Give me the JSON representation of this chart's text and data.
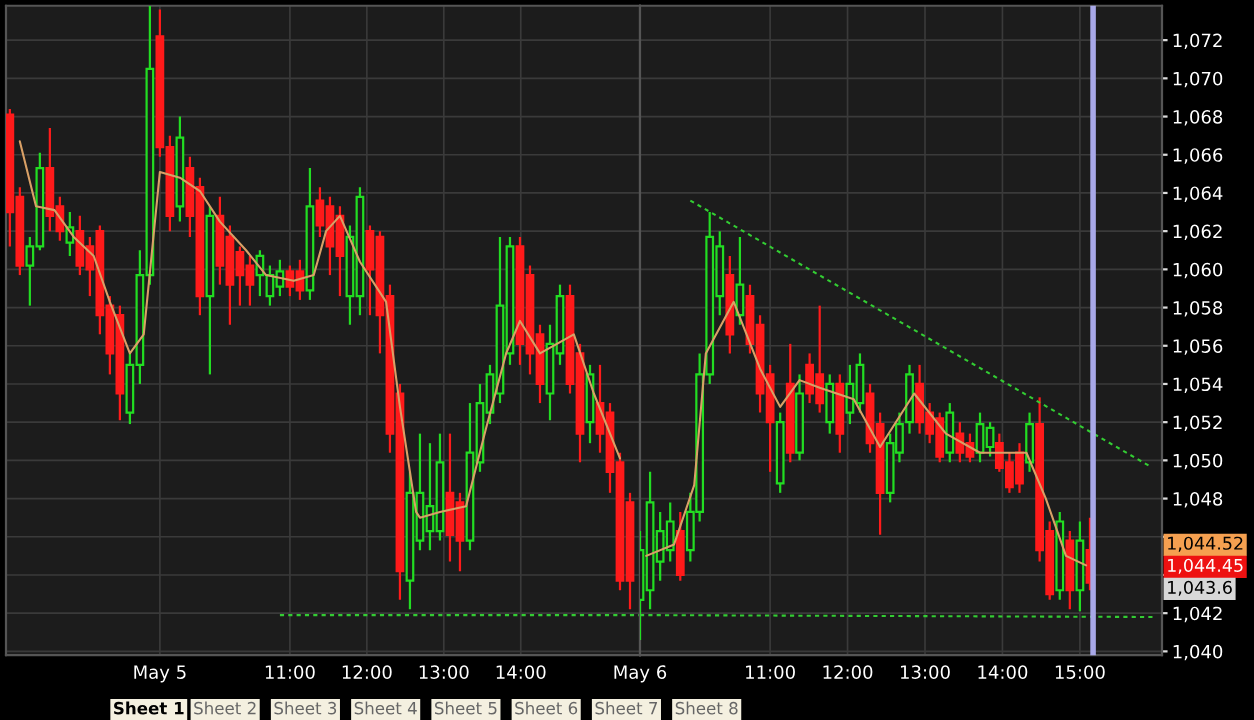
{
  "chart_data": [
    {
      "type": "candlestick",
      "tick_labels": "x",
      "grid": true,
      "x": [
        7.36,
        7.49,
        7.62,
        7.75,
        7.88,
        8.01,
        8.14,
        8.27,
        8.4,
        8.53,
        8.66,
        8.79,
        8.92,
        9.05,
        9.18,
        9.31,
        9.44,
        9.57,
        9.7,
        9.83,
        9.96,
        10.09,
        10.22,
        10.35,
        10.48,
        10.61,
        10.74,
        10.87,
        11.0,
        11.13,
        11.26,
        11.39,
        11.52,
        11.65,
        11.78,
        11.91,
        12.04,
        12.17,
        12.3,
        12.43,
        12.56,
        12.69,
        12.82,
        12.95,
        13.08,
        13.21,
        13.34,
        13.47,
        13.6,
        13.73,
        13.86,
        13.99,
        14.12,
        14.25,
        14.38,
        14.51,
        14.64,
        14.77,
        14.9,
        15.03,
        15.16,
        15.29,
        15.42
      ],
      "ohlc": [
        [
          1068.1,
          1068.4,
          1061.2,
          1063.0
        ],
        [
          1063.8,
          1064.3,
          1059.7,
          1060.2
        ],
        [
          1060.2,
          1061.7,
          1058.1,
          1061.2
        ],
        [
          1061.2,
          1066.1,
          1061.0,
          1065.3
        ],
        [
          1065.3,
          1067.4,
          1062.0,
          1062.8
        ],
        [
          1063.3,
          1063.8,
          1061.5,
          1062.0
        ],
        [
          1061.4,
          1063.0,
          1060.7,
          1062.2
        ],
        [
          1062.0,
          1062.8,
          1059.7,
          1060.2
        ],
        [
          1061.2,
          1061.7,
          1058.6,
          1060.0
        ],
        [
          1062.0,
          1062.3,
          1056.6,
          1057.6
        ],
        [
          1058.1,
          1058.6,
          1054.5,
          1055.6
        ],
        [
          1057.6,
          1058.1,
          1052.1,
          1053.5
        ],
        [
          1052.5,
          1055.6,
          1051.9,
          1055.0
        ],
        [
          1055.0,
          1061.0,
          1054.0,
          1059.7
        ],
        [
          1059.7,
          1073.8,
          1059.2,
          1070.5
        ],
        [
          1072.2,
          1073.6,
          1065.9,
          1066.4
        ],
        [
          1066.4,
          1067.0,
          1062.0,
          1062.8
        ],
        [
          1063.3,
          1068.0,
          1062.5,
          1066.9
        ],
        [
          1065.3,
          1065.9,
          1061.7,
          1062.8
        ],
        [
          1064.3,
          1064.8,
          1057.6,
          1058.6
        ],
        [
          1058.6,
          1063.3,
          1054.5,
          1062.8
        ],
        [
          1062.8,
          1063.8,
          1059.2,
          1060.2
        ],
        [
          1061.7,
          1062.3,
          1057.1,
          1059.2
        ],
        [
          1060.9,
          1061.2,
          1058.1,
          1059.7
        ],
        [
          1060.2,
          1060.7,
          1058.1,
          1059.2
        ],
        [
          1059.7,
          1061.0,
          1058.6,
          1060.7
        ],
        [
          1058.6,
          1060.2,
          1058.1,
          1059.7
        ],
        [
          1059.1,
          1060.5,
          1058.6,
          1059.9
        ],
        [
          1059.9,
          1060.2,
          1058.6,
          1059.1
        ],
        [
          1059.9,
          1060.5,
          1058.4,
          1058.9
        ],
        [
          1058.9,
          1065.3,
          1058.4,
          1063.3
        ],
        [
          1063.6,
          1064.3,
          1061.7,
          1062.3
        ],
        [
          1063.3,
          1063.8,
          1059.7,
          1061.2
        ],
        [
          1062.8,
          1063.3,
          1058.6,
          1060.7
        ],
        [
          1058.6,
          1062.3,
          1057.1,
          1061.7
        ],
        [
          1058.6,
          1064.3,
          1057.6,
          1063.8
        ],
        [
          1062.0,
          1062.3,
          1057.6,
          1060.0
        ],
        [
          1061.7,
          1062.0,
          1055.6,
          1057.6
        ],
        [
          1058.6,
          1059.2,
          1050.4,
          1051.4
        ],
        [
          1053.5,
          1054.0,
          1042.7,
          1044.2
        ],
        [
          1043.7,
          1049.4,
          1042.2,
          1048.3
        ],
        [
          1045.8,
          1051.4,
          1045.3,
          1048.3
        ],
        [
          1046.3,
          1050.9,
          1045.3,
          1047.6
        ],
        [
          1046.3,
          1051.4,
          1045.8,
          1049.9
        ],
        [
          1048.3,
          1051.4,
          1044.7,
          1046.1
        ],
        [
          1047.8,
          1048.3,
          1044.2,
          1045.8
        ],
        [
          1045.8,
          1053.0,
          1045.3,
          1050.4
        ],
        [
          1049.9,
          1054.0,
          1049.4,
          1053.0
        ],
        [
          1052.5,
          1055.0,
          1051.9,
          1054.5
        ],
        [
          1053.5,
          1061.7,
          1053.0,
          1058.1
        ],
        [
          1055.6,
          1061.7,
          1055.0,
          1061.2
        ],
        [
          1061.2,
          1061.7,
          1055.0,
          1056.1
        ],
        [
          1059.7,
          1060.2,
          1054.5,
          1055.6
        ],
        [
          1056.6,
          1057.1,
          1053.0,
          1054.0
        ],
        [
          1053.5,
          1057.1,
          1052.1,
          1056.1
        ],
        [
          1055.6,
          1059.2,
          1055.0,
          1058.6
        ],
        [
          1058.6,
          1059.2,
          1053.5,
          1054.0
        ],
        [
          1055.6,
          1056.1,
          1049.9,
          1051.4
        ],
        [
          1052.0,
          1055.0,
          1050.9,
          1054.5
        ],
        [
          1053.0,
          1055.0,
          1050.4,
          1051.4
        ],
        [
          1052.5,
          1053.0,
          1048.3,
          1049.4
        ],
        [
          1049.9,
          1050.4,
          1043.2,
          1043.7
        ],
        [
          1047.8,
          1048.3,
          1042.2,
          1043.7
        ]
      ],
      "colors": [
        "#ff1a1a",
        "#ff1a1a",
        "#22dd22",
        "#22dd22",
        "#ff1a1a",
        "#ff1a1a",
        "#22dd22",
        "#ff1a1a",
        "#ff1a1a",
        "#ff1a1a",
        "#ff1a1a",
        "#ff1a1a",
        "#22dd22",
        "#22dd22",
        "#22dd22",
        "#ff1a1a",
        "#ff1a1a",
        "#22dd22",
        "#ff1a1a",
        "#ff1a1a",
        "#22dd22",
        "#ff1a1a",
        "#ff1a1a",
        "#ff1a1a",
        "#ff1a1a",
        "#22dd22",
        "#22dd22",
        "#22dd22",
        "#ff1a1a",
        "#ff1a1a",
        "#22dd22",
        "#ff1a1a",
        "#ff1a1a",
        "#ff1a1a",
        "#22dd22",
        "#22dd22",
        "#ff1a1a",
        "#ff1a1a",
        "#ff1a1a",
        "#ff1a1a",
        "#22dd22",
        "#22dd22",
        "#22dd22",
        "#22dd22",
        "#ff1a1a",
        "#ff1a1a",
        "#22dd22",
        "#22dd22",
        "#22dd22",
        "#22dd22",
        "#22dd22",
        "#ff1a1a",
        "#ff1a1a",
        "#ff1a1a",
        "#22dd22",
        "#22dd22",
        "#ff1a1a",
        "#ff1a1a",
        "#22dd22",
        "#ff1a1a",
        "#ff1a1a",
        "#ff1a1a",
        "#ff1a1a"
      ],
      "series": [
        {
          "type": "line",
          "color": "#d9a066",
          "line_style": "solid",
          "x": [
            7.49,
            7.7,
            7.94,
            8.19,
            8.45,
            8.66,
            8.92,
            9.1,
            9.31,
            9.57,
            9.83,
            10.09,
            10.43,
            10.69,
            11.05,
            11.31,
            11.47,
            11.65,
            11.91,
            12.25,
            12.43,
            12.64,
            12.69,
            12.95,
            13.29,
            13.55,
            13.81,
            13.99,
            14.25,
            14.69,
            14.95,
            15.29
          ],
          "values": [
            1066.7,
            1063.3,
            1063.1,
            1061.7,
            1060.7,
            1058.3,
            1055.6,
            1056.6,
            1065.1,
            1064.8,
            1064.1,
            1062.5,
            1061.0,
            1059.7,
            1059.4,
            1059.7,
            1062.0,
            1062.8,
            1060.4,
            1058.3,
            1052.8,
            1047.3,
            1047.0,
            1047.3,
            1047.6,
            1051.7,
            1055.6,
            1057.3,
            1055.6,
            1056.6,
            1053.5,
            1050.1
          ]
        },
        {
          "type": "line",
          "color": "#33cc33",
          "line_style": "dashed",
          "x": [
            10.87,
            15.55
          ],
          "values": [
            1041.9,
            1041.9
          ]
        }
      ],
      "xlim": [
        7.31,
        15.55
      ],
      "xticks": [
        {
          "value": 9.31,
          "label": "May 5"
        },
        {
          "value": 11,
          "label": "11:00"
        },
        {
          "value": 12,
          "label": "12:00"
        },
        {
          "value": 13,
          "label": "13:00"
        },
        {
          "value": 14,
          "label": "14:00"
        }
      ],
      "ylim": [
        1039.8,
        1073.8
      ],
      "yticks": [
        1040,
        1042,
        1044,
        1046,
        1048,
        1050,
        1052,
        1054,
        1056,
        1058,
        1060,
        1062,
        1064,
        1066,
        1068,
        1070,
        1072
      ],
      "annotations": [
        "Sheet 1",
        "Sheet 2",
        "Sheet 3",
        "Sheet 4",
        "Sheet 5",
        "Sheet 6",
        "Sheet 7",
        "Sheet 8"
      ]
    },
    {
      "type": "candlestick",
      "grid": true,
      "x": [
        9.32,
        9.45,
        9.58,
        9.71,
        9.84,
        9.97,
        10.09,
        10.22,
        10.35,
        10.48,
        10.61,
        10.74,
        10.87,
        11.0,
        11.13,
        11.26,
        11.38,
        11.51,
        11.64,
        11.77,
        11.9,
        12.03,
        12.16,
        12.29,
        12.42,
        12.55,
        12.67,
        12.8,
        12.93,
        13.06,
        13.19,
        13.32,
        13.45,
        13.58,
        13.71,
        13.84,
        13.96,
        14.09,
        14.22,
        14.35,
        14.48,
        14.61,
        14.74,
        14.87,
        15.0,
        15.13
      ],
      "ohlc": [
        [
          1042.7,
          1046.3,
          1040.6,
          1045.3
        ],
        [
          1043.2,
          1049.4,
          1042.2,
          1047.8
        ],
        [
          1044.7,
          1047.3,
          1043.7,
          1046.3
        ],
        [
          1045.3,
          1047.8,
          1044.7,
          1046.8
        ],
        [
          1046.3,
          1047.3,
          1043.7,
          1044.0
        ],
        [
          1045.3,
          1048.3,
          1044.7,
          1047.3
        ],
        [
          1047.3,
          1055.6,
          1046.8,
          1054.5
        ],
        [
          1054.5,
          1063.0,
          1054.0,
          1061.7
        ],
        [
          1058.6,
          1062.0,
          1057.6,
          1061.2
        ],
        [
          1059.7,
          1060.7,
          1055.6,
          1056.6
        ],
        [
          1057.6,
          1061.7,
          1057.1,
          1059.2
        ],
        [
          1058.6,
          1059.2,
          1055.6,
          1056.1
        ],
        [
          1057.1,
          1057.6,
          1052.5,
          1053.5
        ],
        [
          1054.5,
          1055.0,
          1049.4,
          1052.0
        ],
        [
          1048.8,
          1052.5,
          1048.3,
          1052.0
        ],
        [
          1054.0,
          1056.1,
          1049.9,
          1050.4
        ],
        [
          1050.4,
          1054.5,
          1050.0,
          1053.5
        ],
        [
          1055.0,
          1055.6,
          1053.0,
          1053.5
        ],
        [
          1054.5,
          1058.1,
          1052.5,
          1053.0
        ],
        [
          1052.0,
          1054.5,
          1051.4,
          1054.0
        ],
        [
          1054.0,
          1054.5,
          1050.4,
          1051.4
        ],
        [
          1052.5,
          1055.0,
          1051.9,
          1054.0
        ],
        [
          1053.0,
          1055.6,
          1052.5,
          1055.0
        ],
        [
          1053.5,
          1054.0,
          1050.4,
          1050.9
        ],
        [
          1051.9,
          1052.5,
          1046.1,
          1048.3
        ],
        [
          1048.3,
          1051.4,
          1047.8,
          1050.9
        ],
        [
          1050.4,
          1052.5,
          1049.9,
          1051.9
        ],
        [
          1052.0,
          1055.0,
          1051.4,
          1054.5
        ],
        [
          1054.0,
          1055.0,
          1051.4,
          1052.0
        ],
        [
          1052.5,
          1053.0,
          1050.9,
          1051.4
        ],
        [
          1052.2,
          1052.5,
          1049.9,
          1050.2
        ],
        [
          1050.4,
          1053.0,
          1049.9,
          1052.5
        ],
        [
          1051.4,
          1052.0,
          1049.9,
          1050.4
        ],
        [
          1050.9,
          1051.4,
          1049.9,
          1050.2
        ],
        [
          1050.4,
          1052.5,
          1049.9,
          1051.9
        ],
        [
          1050.7,
          1052.0,
          1050.2,
          1051.7
        ],
        [
          1050.9,
          1051.4,
          1049.4,
          1049.6
        ],
        [
          1049.9,
          1050.4,
          1048.3,
          1048.6
        ],
        [
          1050.4,
          1050.9,
          1048.3,
          1048.8
        ],
        [
          1049.9,
          1052.5,
          1049.4,
          1051.9
        ],
        [
          1051.9,
          1053.3,
          1044.7,
          1045.3
        ],
        [
          1046.3,
          1046.8,
          1042.7,
          1043.0
        ],
        [
          1043.2,
          1047.3,
          1042.7,
          1046.8
        ],
        [
          1045.8,
          1046.3,
          1042.2,
          1043.2
        ],
        [
          1043.2,
          1046.8,
          1042.1,
          1045.8
        ],
        [
          1045.3,
          1047.0,
          1043.2,
          1043.6
        ]
      ],
      "colors": [
        "#22dd22",
        "#22dd22",
        "#22dd22",
        "#22dd22",
        "#ff1a1a",
        "#22dd22",
        "#22dd22",
        "#22dd22",
        "#22dd22",
        "#ff1a1a",
        "#22dd22",
        "#ff1a1a",
        "#ff1a1a",
        "#ff1a1a",
        "#22dd22",
        "#ff1a1a",
        "#22dd22",
        "#ff1a1a",
        "#ff1a1a",
        "#22dd22",
        "#ff1a1a",
        "#22dd22",
        "#22dd22",
        "#ff1a1a",
        "#ff1a1a",
        "#22dd22",
        "#22dd22",
        "#22dd22",
        "#ff1a1a",
        "#ff1a1a",
        "#ff1a1a",
        "#22dd22",
        "#ff1a1a",
        "#ff1a1a",
        "#22dd22",
        "#22dd22",
        "#ff1a1a",
        "#ff1a1a",
        "#ff1a1a",
        "#22dd22",
        "#ff1a1a",
        "#ff1a1a",
        "#22dd22",
        "#ff1a1a",
        "#22dd22",
        "#ff1a1a"
      ],
      "series": [
        {
          "type": "line",
          "color": "#d9a066",
          "line_style": "solid",
          "x": [
            9.4,
            9.76,
            10.02,
            10.17,
            10.53,
            10.87,
            11.13,
            11.38,
            11.64,
            12.08,
            12.42,
            12.86,
            13.27,
            13.71,
            14.31,
            14.56,
            14.82,
            15.08
          ],
          "values": [
            1045.0,
            1045.6,
            1048.7,
            1055.6,
            1058.3,
            1054.8,
            1052.8,
            1054.2,
            1053.8,
            1053.2,
            1050.7,
            1053.5,
            1051.4,
            1050.4,
            1050.4,
            1048.0,
            1045.0,
            1044.5
          ]
        },
        {
          "type": "line",
          "color": "#33cc33",
          "line_style": "dashed",
          "x": [
            9.97,
            15.9
          ],
          "values": [
            1063.6,
            1049.7
          ]
        },
        {
          "type": "line",
          "color": "#33cc33",
          "line_style": "dashed",
          "x": [
            9.32,
            15.98
          ],
          "values": [
            1041.9,
            1041.8
          ]
        }
      ],
      "ref_lines": [
        {
          "axis": "x",
          "value": 15.17,
          "color": "#a8a8e8"
        }
      ],
      "xlim": [
        9.32,
        16.06
      ],
      "xticks": [
        {
          "value": 9.32,
          "label": "May 6"
        },
        {
          "value": 11,
          "label": "11:00"
        },
        {
          "value": 12,
          "label": "12:00"
        },
        {
          "value": 13,
          "label": "13:00"
        },
        {
          "value": 14,
          "label": "14:00"
        },
        {
          "value": 15,
          "label": "15:00"
        }
      ],
      "ylim": [
        1039.8,
        1073.8
      ],
      "yticks": [
        {
          "value": 1040,
          "label": "1,040"
        },
        {
          "value": 1042,
          "label": "1,042"
        },
        {
          "value": 1044,
          "label": null
        },
        {
          "value": 1046,
          "label": null
        },
        {
          "value": 1048,
          "label": "1,048"
        },
        {
          "value": 1050,
          "label": "1,050"
        },
        {
          "value": 1052,
          "label": "1,052"
        },
        {
          "value": 1054,
          "label": "1,054"
        },
        {
          "value": 1056,
          "label": "1,056"
        },
        {
          "value": 1058,
          "label": "1,058"
        },
        {
          "value": 1060,
          "label": "1,060"
        },
        {
          "value": 1062,
          "label": "1,062"
        },
        {
          "value": 1064,
          "label": "1,064"
        },
        {
          "value": 1066,
          "label": "1,066"
        },
        {
          "value": 1068,
          "label": "1,068"
        },
        {
          "value": 1070,
          "label": "1,070"
        },
        {
          "value": 1072,
          "label": "1,072"
        }
      ],
      "annotations": [
        "1,044.52",
        "1,044.45",
        "1,043.6"
      ]
    }
  ]
}
